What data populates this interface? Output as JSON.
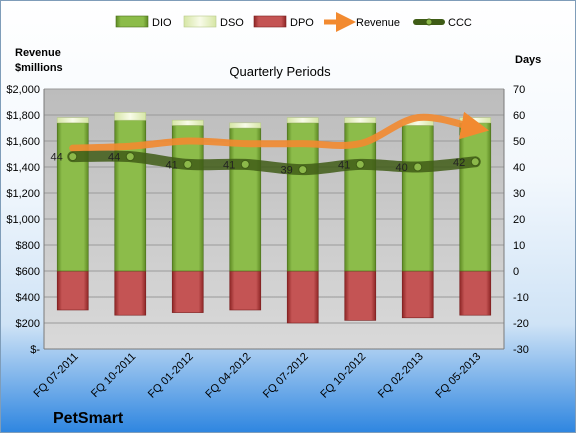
{
  "chart_data": {
    "type": "bar",
    "title": "Quarterly Periods",
    "company": "PetSmart",
    "left_axis_label": [
      "Revenue",
      "$millions"
    ],
    "right_axis_label": "Days",
    "categories": [
      "FQ 07-2011",
      "FQ 10-2011",
      "FQ 01-2012",
      "FQ 04-2012",
      "FQ 07-2012",
      "FQ 10-2012",
      "FQ 02-2013",
      "FQ 05-2013"
    ],
    "left_axis": {
      "min": 0,
      "max": 2000,
      "step": 200,
      "tick_labels": [
        "$-",
        "$200",
        "$400",
        "$600",
        "$800",
        "$1,000",
        "$1,200",
        "$1,400",
        "$1,600",
        "$1,800",
        "$2,000"
      ]
    },
    "right_axis": {
      "min": -30,
      "max": 70,
      "step": 10
    },
    "series": [
      {
        "name": "DIO",
        "axis": "right",
        "stacked": true,
        "color": "#77a33a",
        "values": [
          57,
          58,
          56,
          55,
          57,
          57,
          56,
          57
        ]
      },
      {
        "name": "DSO",
        "axis": "right",
        "stacked": true,
        "color": "#eef5d2",
        "values": [
          2,
          3,
          2,
          2,
          2,
          2,
          2,
          2
        ]
      },
      {
        "name": "DPO",
        "axis": "right",
        "stacked": true,
        "color": "#b03a3a",
        "values": [
          -15,
          -17,
          -16,
          -15,
          -20,
          -19,
          -18,
          -17
        ]
      },
      {
        "name": "Revenue",
        "axis": "left",
        "type": "line",
        "color": "#f28a30",
        "values": [
          1545,
          1560,
          1600,
          1580,
          1580,
          1580,
          1780,
          1700
        ]
      },
      {
        "name": "CCC",
        "axis": "right",
        "type": "line",
        "color": "#4e6e1e",
        "values": [
          44,
          44,
          41,
          41,
          39,
          41,
          40,
          42
        ]
      }
    ],
    "ccc_labels": [
      "44",
      "44",
      "41",
      "41",
      "39",
      "41",
      "40",
      "42"
    ],
    "legend_position": "top",
    "grid": true
  }
}
